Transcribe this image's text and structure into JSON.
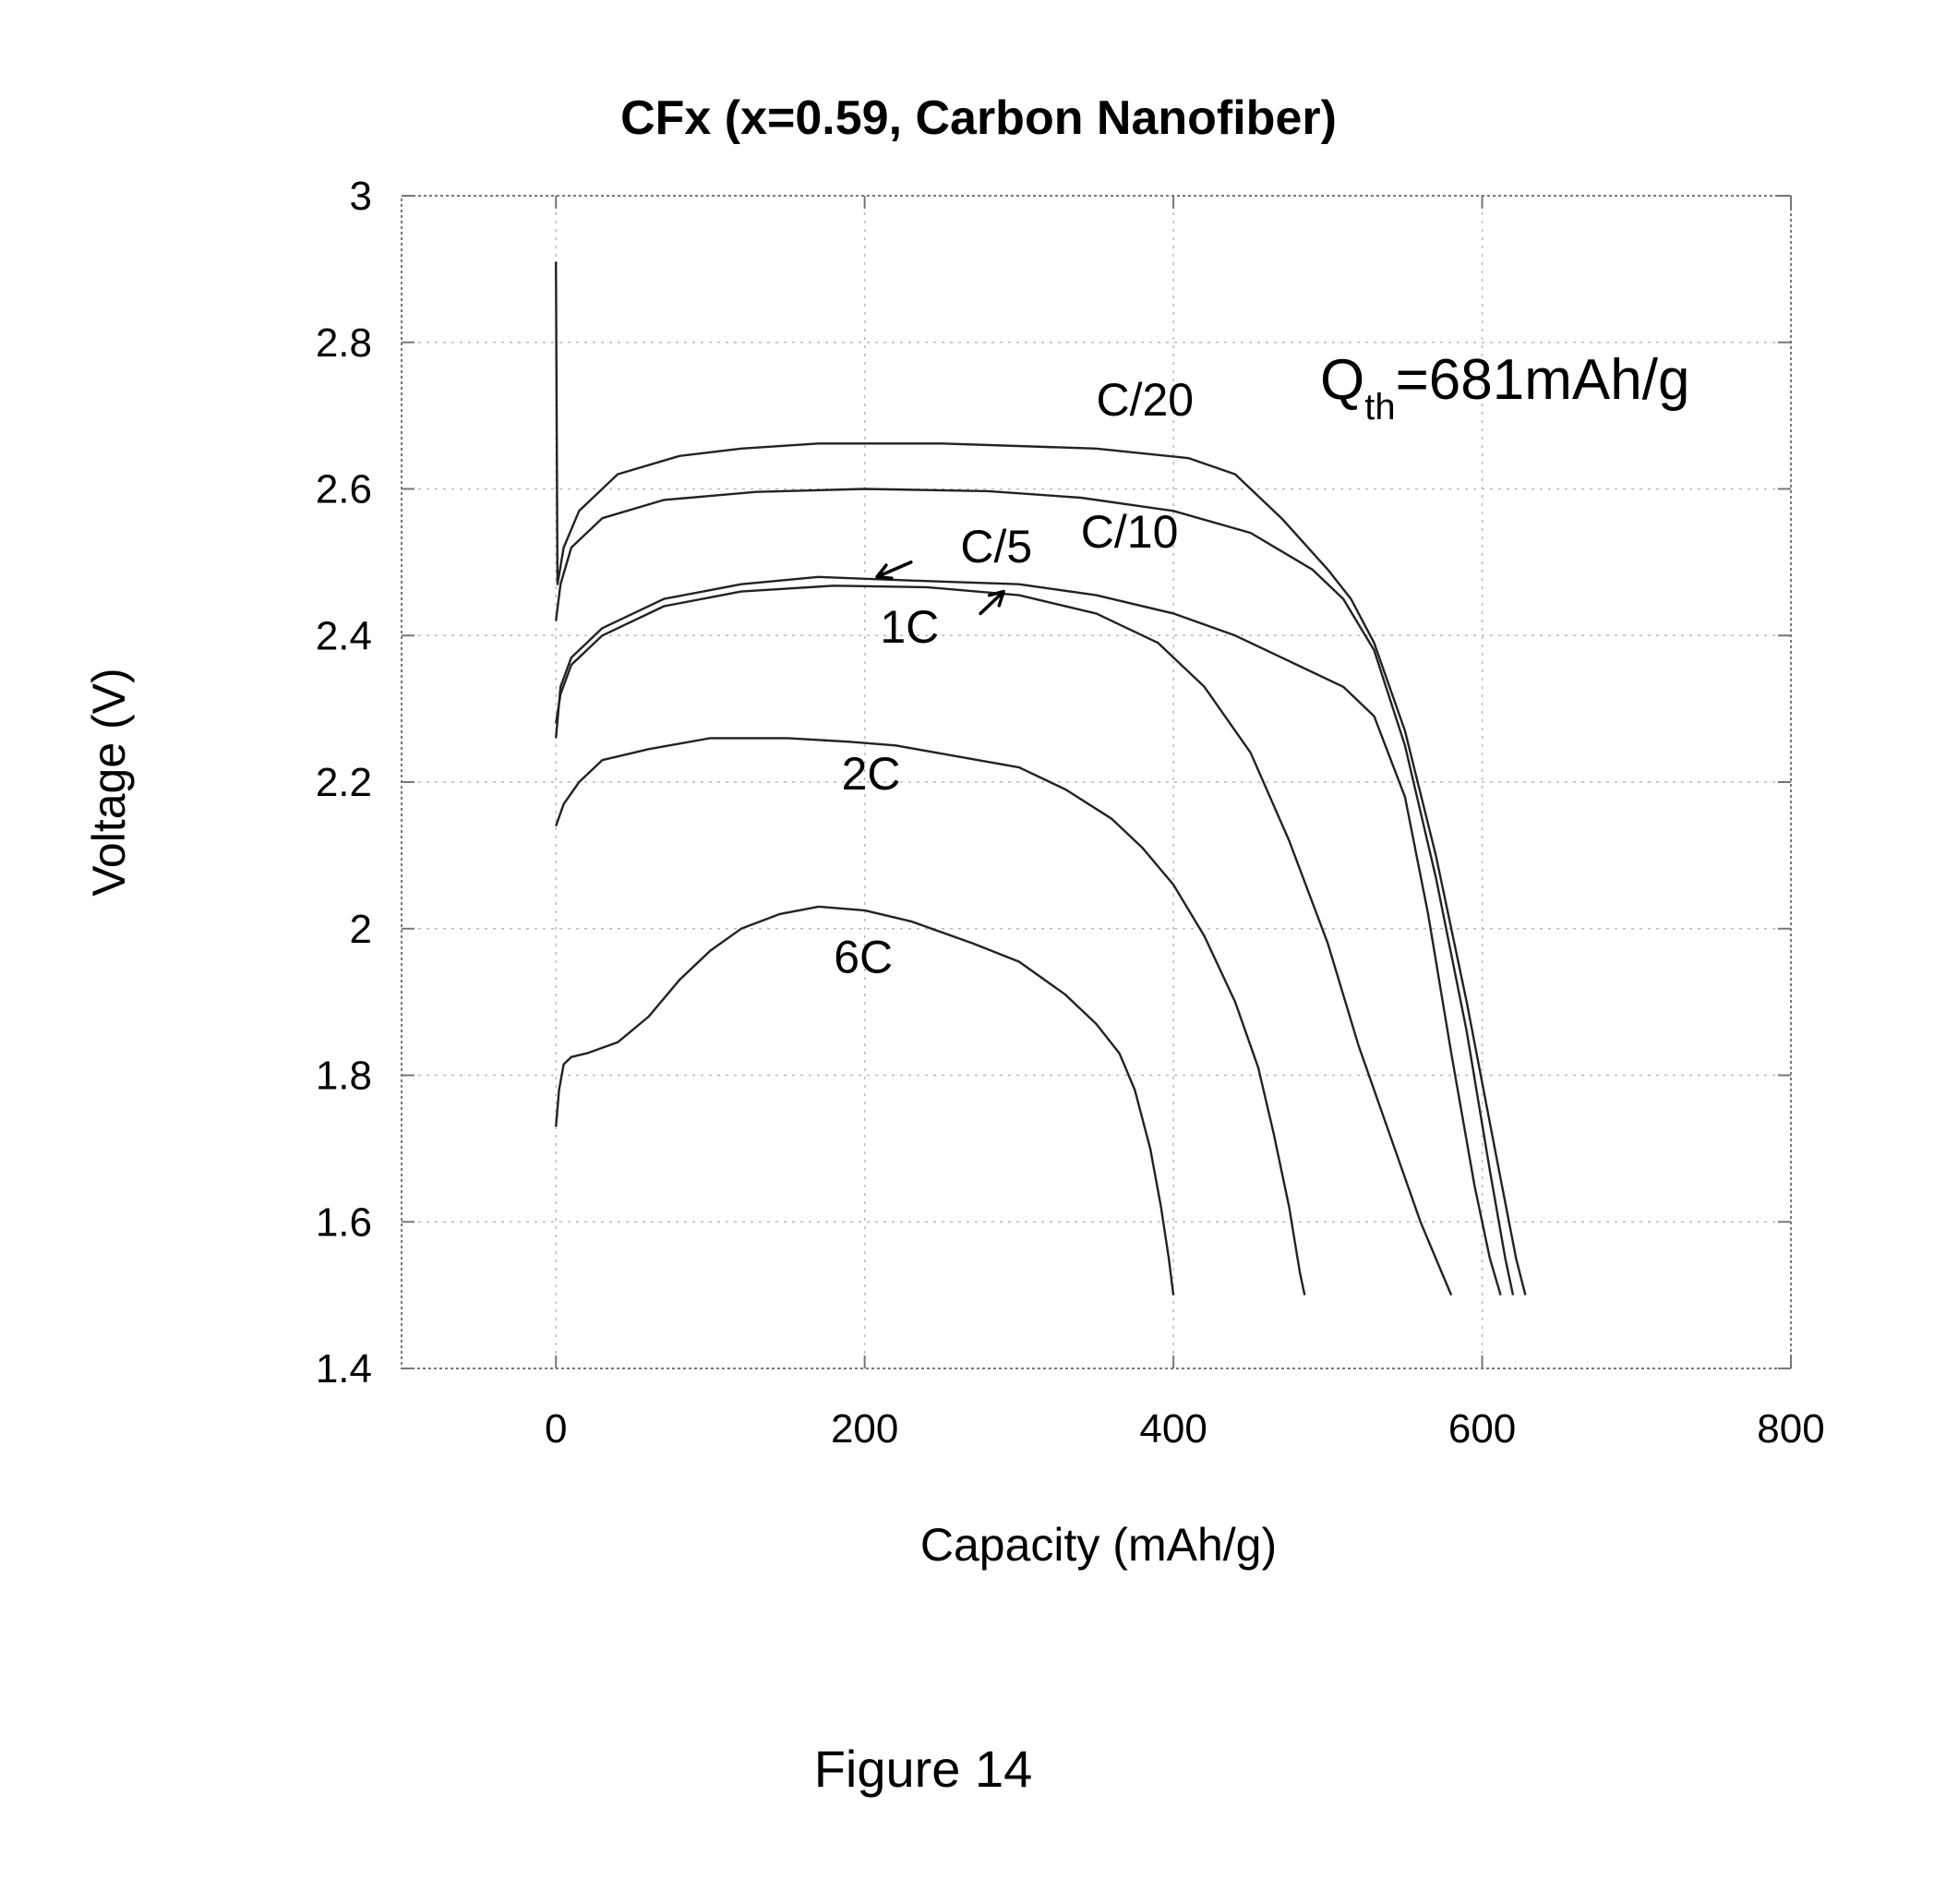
{
  "chart_data": {
    "type": "line",
    "title": "CFx (x=0.59, Carbon Nanofiber)",
    "xlabel": "Capacity (mAh/g)",
    "ylabel": "Voltage (V)",
    "xlim": [
      -100,
      800
    ],
    "ylim": [
      1.4,
      3.0
    ],
    "xticks": [
      "0",
      "200",
      "400",
      "600",
      "800"
    ],
    "yticks": [
      "1.4",
      "1.6",
      "1.8",
      "2",
      "2.2",
      "2.4",
      "2.6",
      "2.8",
      "3"
    ],
    "grid": true,
    "annotation": {
      "main": "Q",
      "sub": "th",
      "rest": "=681mAh/g"
    },
    "series": [
      {
        "name": "C/20",
        "points": [
          [
            0,
            2.91
          ],
          [
            1,
            2.47
          ],
          [
            5,
            2.52
          ],
          [
            15,
            2.57
          ],
          [
            40,
            2.62
          ],
          [
            80,
            2.645
          ],
          [
            120,
            2.655
          ],
          [
            170,
            2.662
          ],
          [
            250,
            2.662
          ],
          [
            350,
            2.655
          ],
          [
            410,
            2.642
          ],
          [
            440,
            2.62
          ],
          [
            470,
            2.56
          ],
          [
            500,
            2.49
          ],
          [
            515,
            2.45
          ],
          [
            530,
            2.39
          ],
          [
            550,
            2.27
          ],
          [
            570,
            2.1
          ],
          [
            590,
            1.9
          ],
          [
            610,
            1.68
          ],
          [
            622,
            1.55
          ],
          [
            628,
            1.5
          ]
        ]
      },
      {
        "name": "C/10",
        "points": [
          [
            0,
            2.42
          ],
          [
            3,
            2.47
          ],
          [
            10,
            2.52
          ],
          [
            30,
            2.56
          ],
          [
            70,
            2.585
          ],
          [
            130,
            2.596
          ],
          [
            200,
            2.6
          ],
          [
            280,
            2.597
          ],
          [
            340,
            2.588
          ],
          [
            400,
            2.57
          ],
          [
            450,
            2.54
          ],
          [
            490,
            2.49
          ],
          [
            510,
            2.45
          ],
          [
            530,
            2.38
          ],
          [
            550,
            2.25
          ],
          [
            570,
            2.07
          ],
          [
            590,
            1.86
          ],
          [
            605,
            1.67
          ],
          [
            615,
            1.55
          ],
          [
            620,
            1.5
          ]
        ]
      },
      {
        "name": "C/5",
        "points": [
          [
            0,
            2.26
          ],
          [
            3,
            2.33
          ],
          [
            10,
            2.37
          ],
          [
            30,
            2.41
          ],
          [
            70,
            2.45
          ],
          [
            120,
            2.47
          ],
          [
            170,
            2.48
          ],
          [
            230,
            2.475
          ],
          [
            300,
            2.47
          ],
          [
            350,
            2.455
          ],
          [
            400,
            2.43
          ],
          [
            440,
            2.4
          ],
          [
            480,
            2.36
          ],
          [
            510,
            2.33
          ],
          [
            530,
            2.29
          ],
          [
            550,
            2.18
          ],
          [
            565,
            2.02
          ],
          [
            580,
            1.83
          ],
          [
            595,
            1.65
          ],
          [
            605,
            1.55
          ],
          [
            612,
            1.5
          ]
        ]
      },
      {
        "name": "1C",
        "points": [
          [
            0,
            2.28
          ],
          [
            3,
            2.32
          ],
          [
            10,
            2.36
          ],
          [
            30,
            2.4
          ],
          [
            70,
            2.44
          ],
          [
            120,
            2.46
          ],
          [
            180,
            2.468
          ],
          [
            240,
            2.466
          ],
          [
            300,
            2.455
          ],
          [
            350,
            2.43
          ],
          [
            390,
            2.39
          ],
          [
            420,
            2.33
          ],
          [
            450,
            2.24
          ],
          [
            475,
            2.12
          ],
          [
            500,
            1.98
          ],
          [
            520,
            1.84
          ],
          [
            540,
            1.72
          ],
          [
            560,
            1.6
          ],
          [
            572,
            1.54
          ],
          [
            580,
            1.5
          ]
        ]
      },
      {
        "name": "2C",
        "points": [
          [
            0,
            2.14
          ],
          [
            5,
            2.17
          ],
          [
            15,
            2.2
          ],
          [
            30,
            2.23
          ],
          [
            60,
            2.245
          ],
          [
            100,
            2.26
          ],
          [
            150,
            2.26
          ],
          [
            190,
            2.255
          ],
          [
            220,
            2.25
          ],
          [
            260,
            2.235
          ],
          [
            300,
            2.22
          ],
          [
            330,
            2.19
          ],
          [
            360,
            2.15
          ],
          [
            380,
            2.11
          ],
          [
            400,
            2.06
          ],
          [
            420,
            1.99
          ],
          [
            440,
            1.9
          ],
          [
            455,
            1.81
          ],
          [
            465,
            1.72
          ],
          [
            475,
            1.62
          ],
          [
            482,
            1.53
          ],
          [
            485,
            1.5
          ]
        ]
      },
      {
        "name": "6C",
        "points": [
          [
            0,
            1.73
          ],
          [
            2,
            1.78
          ],
          [
            5,
            1.815
          ],
          [
            10,
            1.825
          ],
          [
            20,
            1.83
          ],
          [
            40,
            1.845
          ],
          [
            60,
            1.88
          ],
          [
            80,
            1.93
          ],
          [
            100,
            1.97
          ],
          [
            120,
            2.0
          ],
          [
            145,
            2.02
          ],
          [
            170,
            2.03
          ],
          [
            200,
            2.025
          ],
          [
            230,
            2.01
          ],
          [
            270,
            1.98
          ],
          [
            300,
            1.955
          ],
          [
            330,
            1.91
          ],
          [
            350,
            1.87
          ],
          [
            365,
            1.83
          ],
          [
            375,
            1.78
          ],
          [
            385,
            1.7
          ],
          [
            392,
            1.62
          ],
          [
            397,
            1.55
          ],
          [
            400,
            1.5
          ]
        ]
      }
    ],
    "series_labels": [
      {
        "text": "C/20",
        "x": 350,
        "y": 2.7
      },
      {
        "text": "C/10",
        "x": 340,
        "y": 2.52
      },
      {
        "text": "C/5",
        "x": 262,
        "y": 2.5
      },
      {
        "text": "1C",
        "x": 210,
        "y": 2.39
      },
      {
        "text": "2C",
        "x": 185,
        "y": 2.19
      },
      {
        "text": "6C",
        "x": 180,
        "y": 1.94
      }
    ],
    "arrows": [
      {
        "from": [
          230,
          2.5
        ],
        "to": [
          208,
          2.48
        ]
      },
      {
        "from": [
          275,
          2.43
        ],
        "to": [
          290,
          2.46
        ]
      }
    ]
  },
  "caption": "Figure 14"
}
